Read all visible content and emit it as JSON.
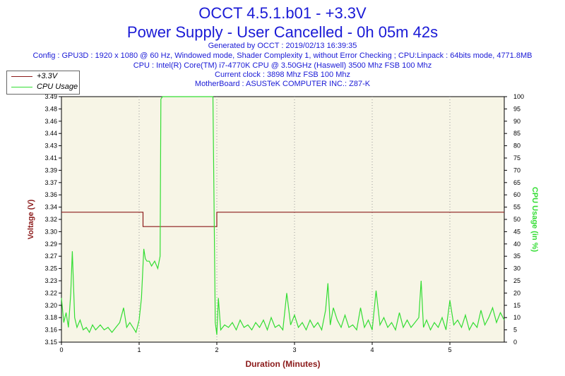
{
  "header": {
    "title_line1": "OCCT 4.5.1.b01 - +3.3V",
    "title_line2": "Power Supply - User Cancelled - 0h 05m 42s",
    "generated": "Generated by OCCT : 2019/02/13 16:39:35",
    "config": "Config : GPU3D : 1920 x 1080 @ 60 Hz, Windowed mode, Shader Complexity 1, without Error Checking ; CPU:Linpack : 64bits mode, 4771.8MB",
    "cpu": "CPU : Intel(R) Core(TM) i7-4770K CPU @ 3.50GHz (Haswell) 3500 Mhz FSB 100 Mhz",
    "clock": "Current clock : 3898 Mhz FSB 100 Mhz",
    "motherboard": "MotherBoard : ASUSTeK COMPUTER INC.: Z87-K"
  },
  "legend": {
    "voltage_label": "+3.3V",
    "cpu_label": "CPU Usage"
  },
  "colors": {
    "title": "#1a1ad6",
    "voltage": "#8b1a1a",
    "cpu": "#33dd33",
    "plot_bg": "#f7f5e6",
    "grid": "#999999"
  },
  "chart_data": {
    "type": "line",
    "xlabel": "Duration (Minutes)",
    "ylabel_left": "Voltage (V)",
    "ylabel_right": "CPU Usage (in %)",
    "xlim": [
      0,
      5.7
    ],
    "ylim_left": [
      3.15,
      3.49
    ],
    "ylim_right": [
      0,
      100
    ],
    "x_ticks": [
      0,
      1,
      2,
      3,
      4,
      5
    ],
    "y_left_ticks": [
      "3.15",
      "3.16",
      "3.18",
      "3.20",
      "3.22",
      "3.23",
      "3.25",
      "3.27",
      "3.29",
      "3.30",
      "3.32",
      "3.34",
      "3.36",
      "3.37",
      "3.39",
      "3.41",
      "3.43",
      "3.44",
      "3.46",
      "3.48",
      "3.49"
    ],
    "y_right_ticks": [
      0,
      5,
      10,
      15,
      20,
      25,
      30,
      35,
      40,
      45,
      50,
      55,
      60,
      65,
      70,
      75,
      80,
      85,
      90,
      95,
      100
    ],
    "grid": true,
    "series": [
      {
        "name": "+3.3V",
        "axis": "left",
        "x": [
          0,
          1.05,
          1.05,
          2.0,
          2.0,
          5.7
        ],
        "y": [
          3.33,
          3.33,
          3.31,
          3.31,
          3.33,
          3.33
        ]
      },
      {
        "name": "CPU Usage",
        "axis": "right",
        "x": [
          0,
          0.03,
          0.06,
          0.09,
          0.12,
          0.14,
          0.17,
          0.2,
          0.24,
          0.28,
          0.32,
          0.36,
          0.4,
          0.44,
          0.5,
          0.55,
          0.6,
          0.65,
          0.7,
          0.75,
          0.8,
          0.84,
          0.88,
          0.92,
          0.96,
          1.0,
          1.03,
          1.06,
          1.08,
          1.1,
          1.13,
          1.16,
          1.2,
          1.24,
          1.27,
          1.28,
          1.3,
          1.5,
          1.7,
          1.95,
          1.98,
          2.0,
          2.02,
          2.05,
          2.1,
          2.15,
          2.2,
          2.25,
          2.3,
          2.35,
          2.4,
          2.45,
          2.5,
          2.55,
          2.6,
          2.65,
          2.7,
          2.75,
          2.8,
          2.85,
          2.9,
          2.95,
          3.0,
          3.05,
          3.1,
          3.15,
          3.2,
          3.25,
          3.3,
          3.35,
          3.4,
          3.43,
          3.46,
          3.5,
          3.55,
          3.6,
          3.65,
          3.7,
          3.75,
          3.8,
          3.85,
          3.9,
          3.95,
          4.0,
          4.05,
          4.1,
          4.15,
          4.2,
          4.25,
          4.3,
          4.35,
          4.4,
          4.45,
          4.5,
          4.55,
          4.6,
          4.63,
          4.66,
          4.7,
          4.75,
          4.8,
          4.85,
          4.9,
          4.95,
          5.0,
          5.05,
          5.1,
          5.15,
          5.2,
          5.25,
          5.3,
          5.35,
          5.4,
          5.45,
          5.5,
          5.55,
          5.6,
          5.65,
          5.7
        ],
        "y": [
          18,
          8,
          12,
          6,
          20,
          37,
          10,
          6,
          9,
          5,
          6,
          4,
          7,
          5,
          7,
          5,
          6,
          4,
          6,
          8,
          14,
          6,
          8,
          6,
          4,
          9,
          18,
          38,
          34,
          33,
          33,
          31,
          33,
          30,
          35,
          99,
          100,
          100,
          100,
          100,
          8,
          3,
          18,
          5,
          7,
          6,
          8,
          5,
          9,
          6,
          7,
          5,
          8,
          6,
          9,
          5,
          10,
          6,
          7,
          5,
          20,
          7,
          11,
          6,
          8,
          5,
          9,
          6,
          8,
          5,
          13,
          24,
          7,
          14,
          9,
          6,
          11,
          6,
          7,
          5,
          14,
          6,
          9,
          5,
          21,
          7,
          10,
          6,
          8,
          5,
          12,
          6,
          9,
          6,
          8,
          10,
          25,
          6,
          9,
          5,
          8,
          6,
          10,
          5,
          17,
          7,
          9,
          6,
          11,
          5,
          8,
          6,
          13,
          7,
          10,
          14,
          8,
          12,
          9
        ]
      }
    ]
  }
}
